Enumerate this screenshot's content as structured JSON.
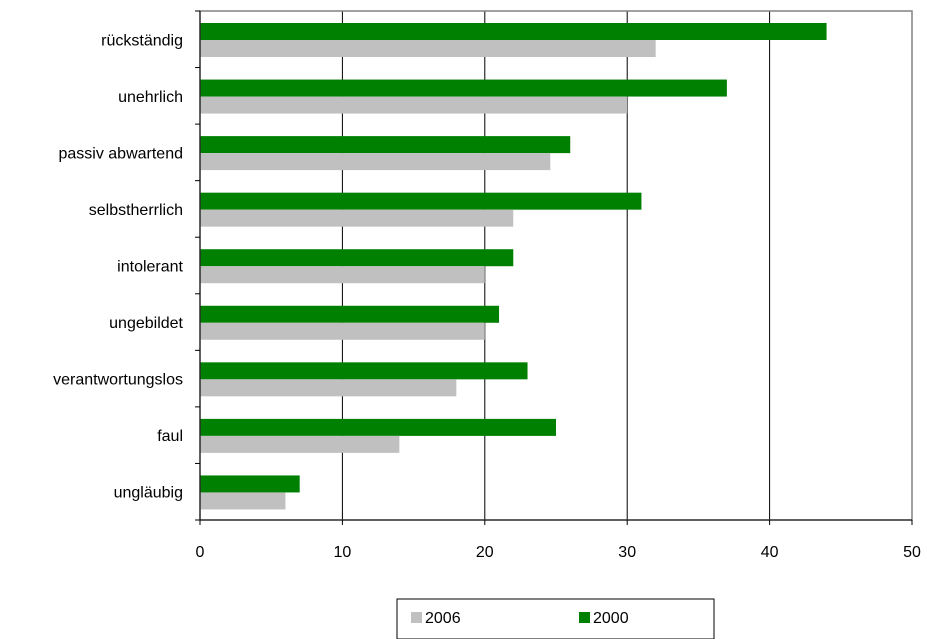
{
  "chart_data": {
    "type": "bar",
    "orientation": "horizontal",
    "categories": [
      "rückständig",
      "unehrlich",
      "passiv abwartend",
      "selbstherrlich",
      "intolerant",
      "ungebildet",
      "verantwortungslos",
      "faul",
      "ungläubig"
    ],
    "series": [
      {
        "name": "2000",
        "values": [
          44,
          37,
          26,
          31,
          22,
          21,
          23,
          25,
          7
        ],
        "color": "#008000"
      },
      {
        "name": "2006",
        "values": [
          32,
          30,
          24.6,
          22,
          20,
          20,
          18,
          14,
          6
        ],
        "color": "#c0c0c0"
      }
    ],
    "title": "",
    "xlabel": "",
    "ylabel": "",
    "xlim": [
      0,
      50
    ],
    "xticks": [
      "0",
      "10",
      "20",
      "30",
      "40",
      "50"
    ],
    "grid": "vertical",
    "legend": {
      "position": "bottom-center",
      "order": [
        "2006",
        "2000"
      ]
    }
  }
}
